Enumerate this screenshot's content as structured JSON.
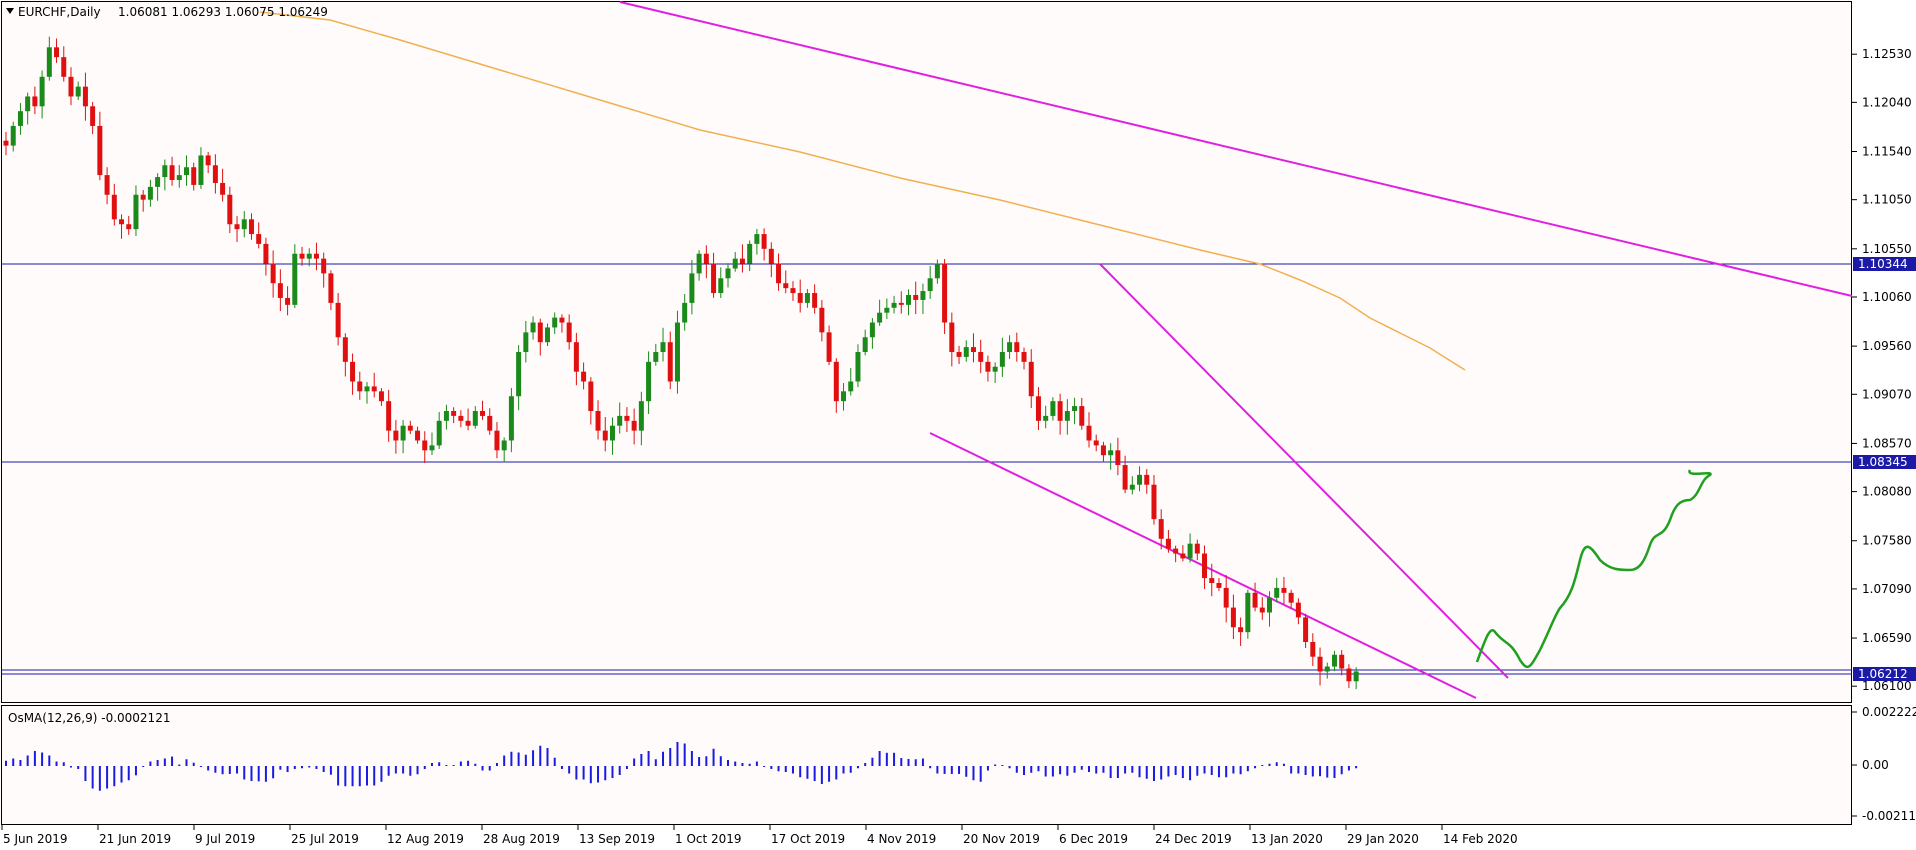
{
  "header": {
    "symbol": "EURCHF,Daily",
    "ohlc": "1.06081 1.06293 1.06075 1.06249"
  },
  "colors": {
    "background": "#fffbfb",
    "bull": "#1a8a1a",
    "bear": "#e01010",
    "hline": "#1a1aa6",
    "trend": "#e020e0",
    "ma": "#f0b050",
    "projection": "#20a020",
    "osma": "#1a1ae0",
    "tag_bg": "#1a1aa6"
  },
  "price_axis": {
    "ticks": [
      "1.12530",
      "1.12040",
      "1.11540",
      "1.11050",
      "1.10550",
      "1.10060",
      "1.09560",
      "1.09070",
      "1.08570",
      "1.08080",
      "1.07580",
      "1.07090",
      "1.06590",
      "1.06100"
    ]
  },
  "level_tags": [
    "1.10344",
    "1.08345",
    "1.06212"
  ],
  "date_axis": {
    "ticks": [
      "5 Jun 2019",
      "21 Jun 2019",
      "9 Jul 2019",
      "25 Jul 2019",
      "12 Aug 2019",
      "28 Aug 2019",
      "13 Sep 2019",
      "1 Oct 2019",
      "17 Oct 2019",
      "4 Nov 2019",
      "20 Nov 2019",
      "6 Dec 2019",
      "24 Dec 2019",
      "13 Jan 2020",
      "29 Jan 2020",
      "14 Feb 2020"
    ]
  },
  "indicator": {
    "title": "OsMA(12,26,9) -0.0002121",
    "ticks": [
      "0.0022224",
      "0.00",
      "-0.0021125"
    ]
  },
  "chart_data": {
    "type": "candlestick",
    "title": "EURCHF,Daily",
    "ylim": [
      1.0598,
      1.13
    ],
    "closes": [
      1.116,
      1.118,
      1.1195,
      1.121,
      1.12,
      1.123,
      1.126,
      1.125,
      1.123,
      1.121,
      1.122,
      1.12,
      1.118,
      1.113,
      1.111,
      1.1085,
      1.108,
      1.1075,
      1.111,
      1.1105,
      1.1118,
      1.1128,
      1.114,
      1.1125,
      1.113,
      1.1138,
      1.112,
      1.115,
      1.114,
      1.1122,
      1.111,
      1.108,
      1.1075,
      1.1085,
      1.107,
      1.106,
      1.104,
      1.102,
      1.1005,
      1.0998,
      1.105,
      1.1045,
      1.105,
      1.1045,
      1.103,
      1.1,
      1.0965,
      1.094,
      1.092,
      1.091,
      1.0915,
      1.091,
      1.09,
      1.087,
      1.086,
      1.0875,
      1.087,
      1.086,
      1.085,
      1.0855,
      1.088,
      1.089,
      1.0885,
      1.088,
      1.0875,
      1.089,
      1.0885,
      1.087,
      1.085,
      1.086,
      1.0905,
      1.095,
      1.097,
      1.098,
      1.096,
      1.0975,
      1.0985,
      1.098,
      1.096,
      1.093,
      1.092,
      1.089,
      1.087,
      1.086,
      1.0875,
      1.0885,
      1.088,
      1.087,
      1.09,
      1.094,
      1.095,
      1.096,
      1.092,
      1.098,
      1.1,
      1.103,
      1.105,
      1.104,
      1.101,
      1.1025,
      1.1035,
      1.1045,
      1.104,
      1.106,
      1.107,
      1.1055,
      1.104,
      1.102,
      1.1015,
      1.101,
      1.1,
      1.101,
      1.0995,
      1.097,
      1.094,
      1.09,
      1.091,
      1.092,
      1.095,
      1.0965,
      1.098,
      1.099,
      1.0995,
      1.1,
      1.0998,
      1.1008,
      1.1003,
      1.1012,
      1.1025,
      1.104,
      1.098,
      1.095,
      1.0945,
      1.0955,
      1.095,
      1.094,
      1.093,
      1.0935,
      1.095,
      1.096,
      1.095,
      1.094,
      1.0905,
      1.088,
      1.0885,
      1.09,
      1.088,
      1.089,
      1.0895,
      1.0875,
      1.086,
      1.0855,
      1.0845,
      1.085,
      1.0835,
      1.081,
      1.0815,
      1.0825,
      1.0815,
      1.078,
      1.076,
      1.075,
      1.0745,
      1.074,
      1.0755,
      1.0745,
      1.072,
      1.0715,
      1.071,
      1.069,
      1.067,
      1.0665,
      1.0705,
      1.069,
      1.0685,
      1.07,
      1.071,
      1.0705,
      1.0695,
      1.068,
      1.0655,
      1.064,
      1.0625,
      1.063,
      1.0642,
      1.0628,
      1.0615,
      1.0625
    ]
  }
}
